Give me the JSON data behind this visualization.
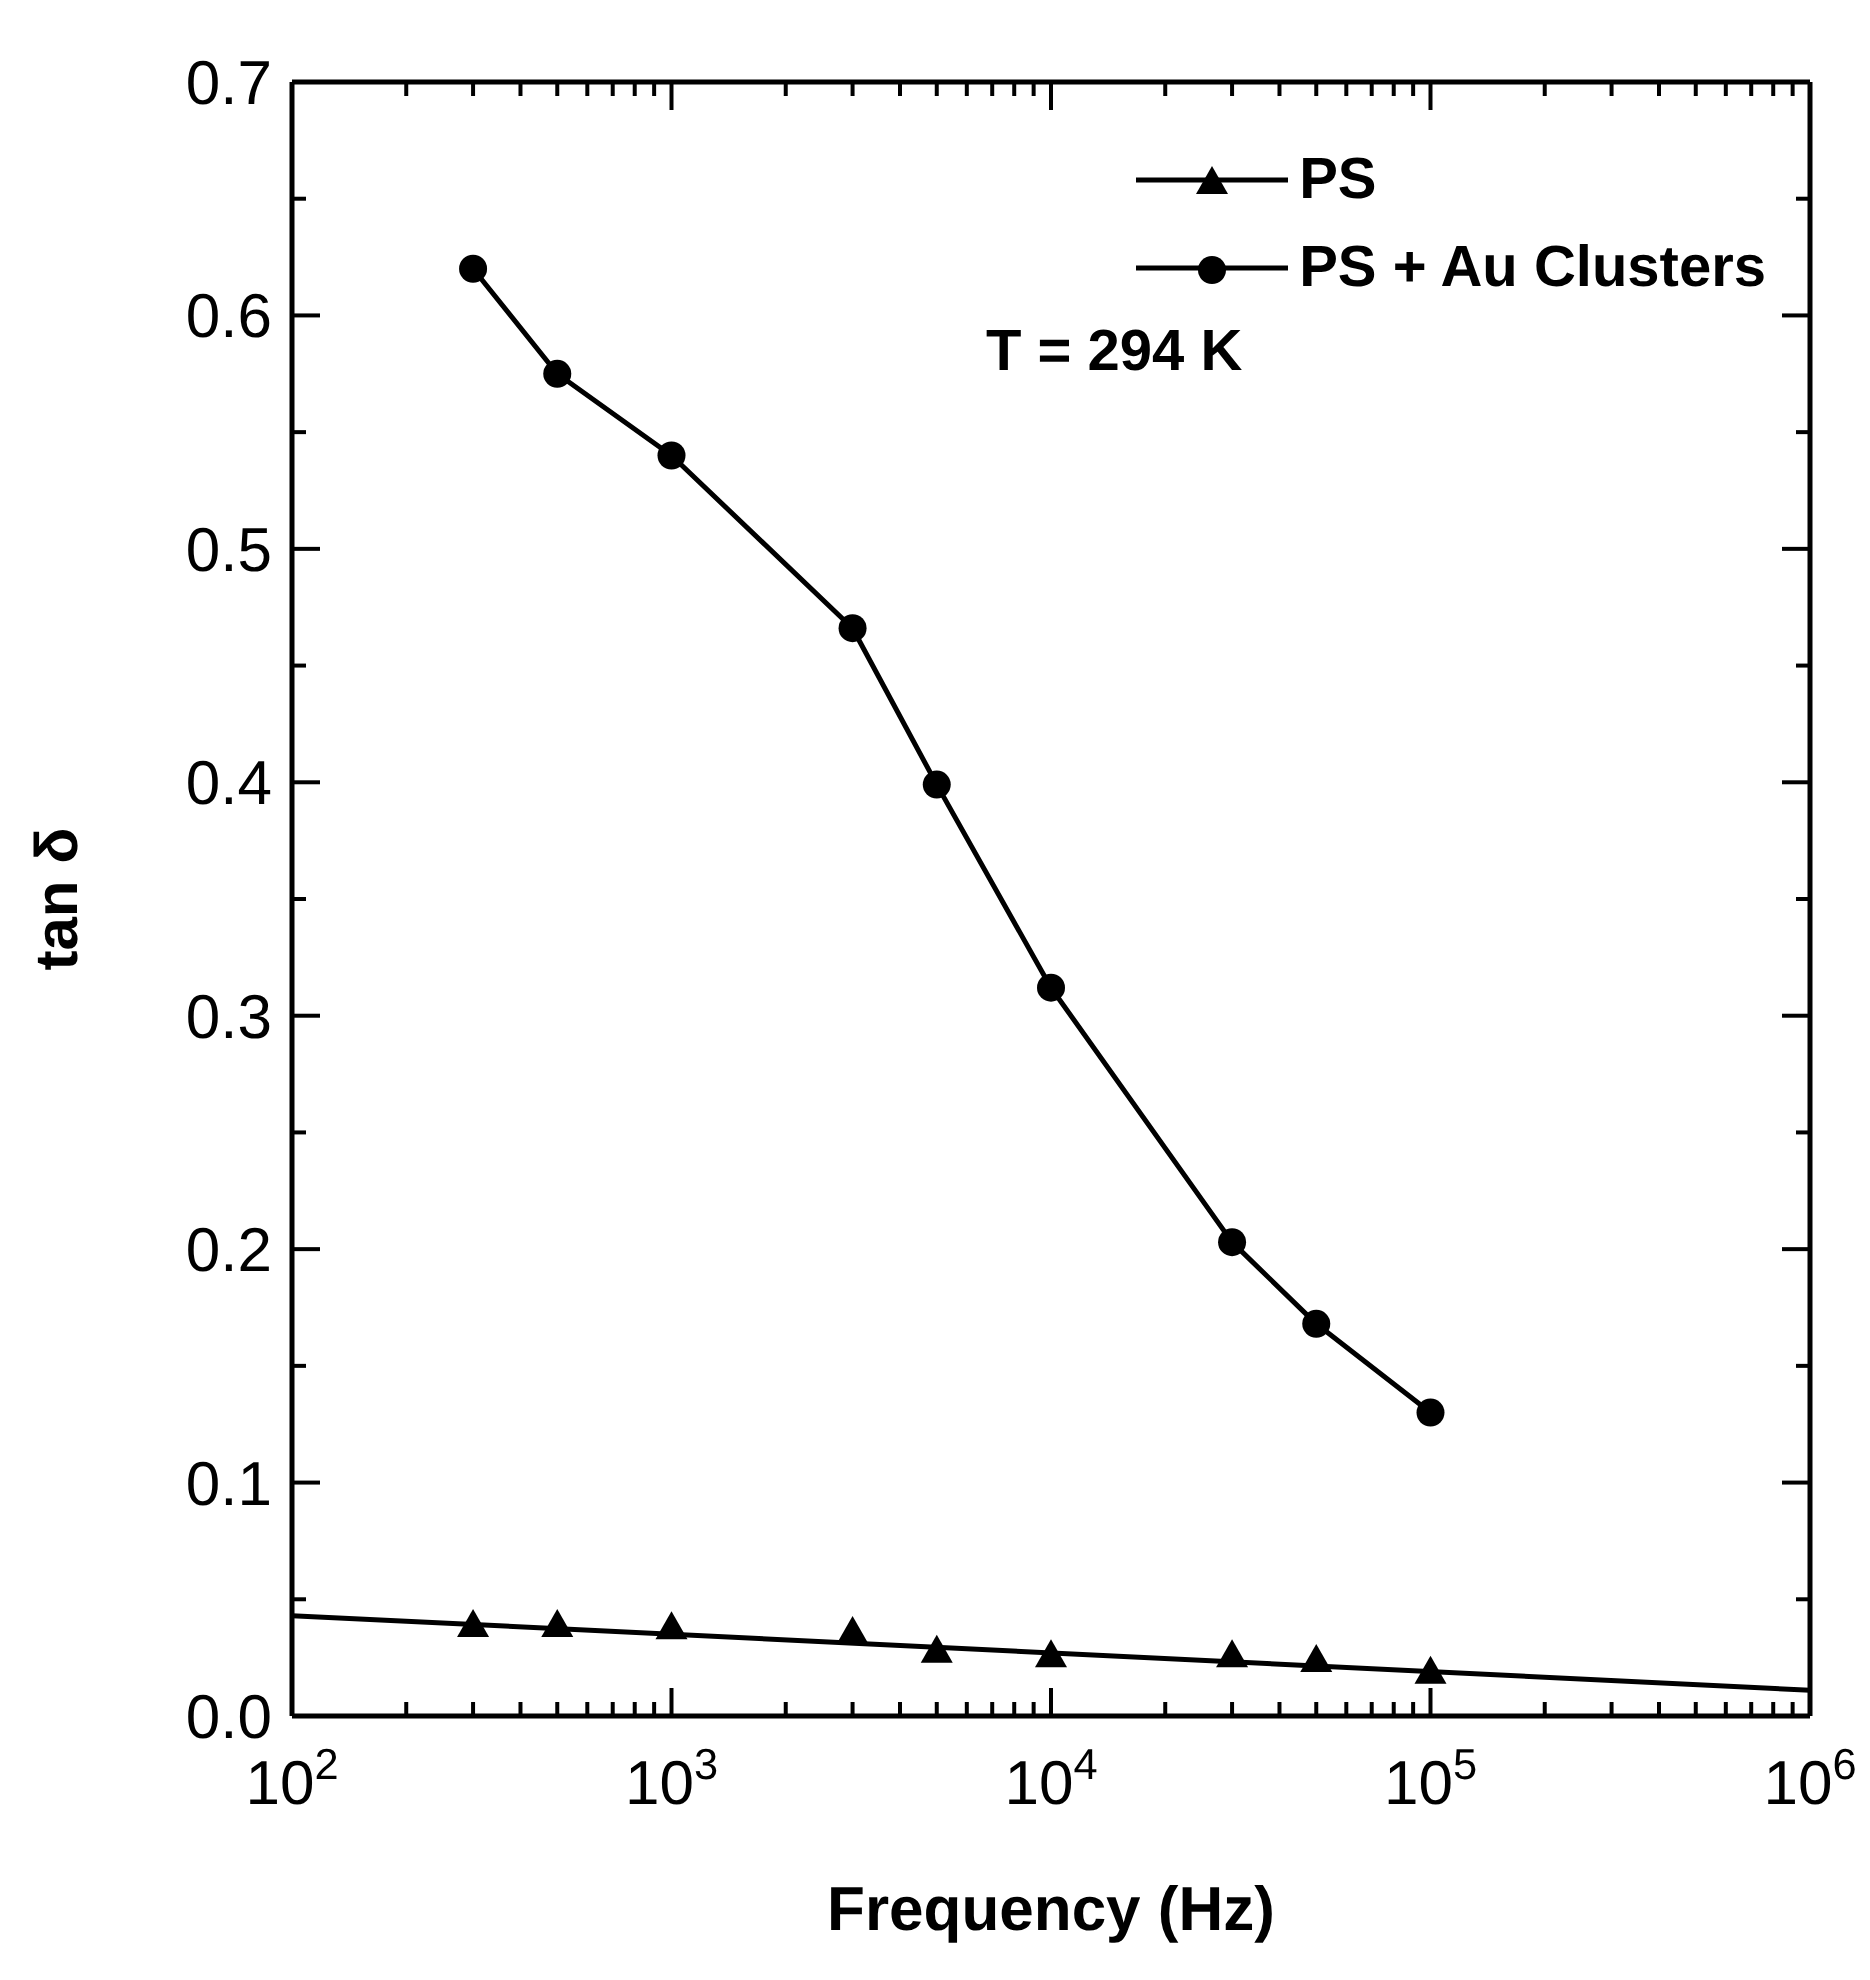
{
  "chart_data": {
    "type": "line",
    "xlabel": "Frequency (Hz)",
    "ylabel": "tan δ",
    "annotations": [
      "T = 294 K"
    ],
    "legend": "top right",
    "log": "x",
    "xlim": [
      100,
      1000000
    ],
    "ylim": [
      0,
      0.7
    ],
    "xticks": [
      {
        "value": 100,
        "label": "10$^{2}$"
      },
      {
        "value": 200,
        "label": null
      },
      {
        "value": 300,
        "label": null
      },
      {
        "value": 400,
        "label": null
      },
      {
        "value": 500,
        "label": null
      },
      {
        "value": 600,
        "label": null
      },
      {
        "value": 700,
        "label": null
      },
      {
        "value": 800,
        "label": null
      },
      {
        "value": 900,
        "label": null
      },
      {
        "value": 1000,
        "label": "10$^{3}$"
      },
      {
        "value": 2000,
        "label": null
      },
      {
        "value": 3000,
        "label": null
      },
      {
        "value": 4000,
        "label": null
      },
      {
        "value": 5000,
        "label": null
      },
      {
        "value": 6000,
        "label": null
      },
      {
        "value": 7000,
        "label": null
      },
      {
        "value": 8000,
        "label": null
      },
      {
        "value": 9000,
        "label": null
      },
      {
        "value": 10000,
        "label": "10$^{4}$"
      },
      {
        "value": 20000,
        "label": null
      },
      {
        "value": 30000,
        "label": null
      },
      {
        "value": 40000,
        "label": null
      },
      {
        "value": 50000,
        "label": null
      },
      {
        "value": 60000,
        "label": null
      },
      {
        "value": 70000,
        "label": null
      },
      {
        "value": 80000,
        "label": null
      },
      {
        "value": 90000,
        "label": null
      },
      {
        "value": 100000,
        "label": "10$^{5}$"
      },
      {
        "value": 200000,
        "label": null
      },
      {
        "value": 300000,
        "label": null
      },
      {
        "value": 400000,
        "label": null
      },
      {
        "value": 500000,
        "label": null
      },
      {
        "value": 600000,
        "label": null
      },
      {
        "value": 700000,
        "label": null
      },
      {
        "value": 800000,
        "label": null
      },
      {
        "value": 900000,
        "label": null
      },
      {
        "value": 1000000,
        "label": "10$^{6}$"
      }
    ],
    "yticks": [
      {
        "value": 0,
        "label": "0.0"
      },
      {
        "value": 0.05,
        "label": null
      },
      0.1,
      {
        "value": 0.15,
        "label": null
      },
      0.2,
      {
        "value": 0.25,
        "label": null
      },
      0.3,
      {
        "value": 0.35,
        "label": null
      },
      0.4,
      {
        "value": 0.45,
        "label": null
      },
      0.5,
      {
        "value": 0.55,
        "label": null
      },
      0.6,
      {
        "value": 0.65,
        "label": null
      },
      0.7
    ],
    "series": [
      {
        "name": "PS",
        "type": "scatter",
        "marker": "triangle",
        "color": "#000000",
        "x": [
          300,
          500,
          1000,
          3000,
          5000,
          10000,
          30000,
          50000,
          100000
        ],
        "values": [
          0.039,
          0.039,
          0.038,
          0.036,
          0.028,
          0.026,
          0.026,
          0.024,
          0.019
        ]
      },
      {
        "name": "PS + Au Clusters",
        "marker": "circle",
        "color": "#000000",
        "x": [
          300,
          500,
          1000,
          3000,
          5000,
          10000,
          30000,
          50000,
          100000
        ],
        "values": [
          0.62,
          0.575,
          0.54,
          0.466,
          0.399,
          0.312,
          0.203,
          0.168,
          0.13
        ]
      },
      {
        "marker": "none",
        "color": "#000000",
        "x": [
          100,
          1000000
        ],
        "values": [
          0.043,
          0.011
        ]
      }
    ]
  }
}
